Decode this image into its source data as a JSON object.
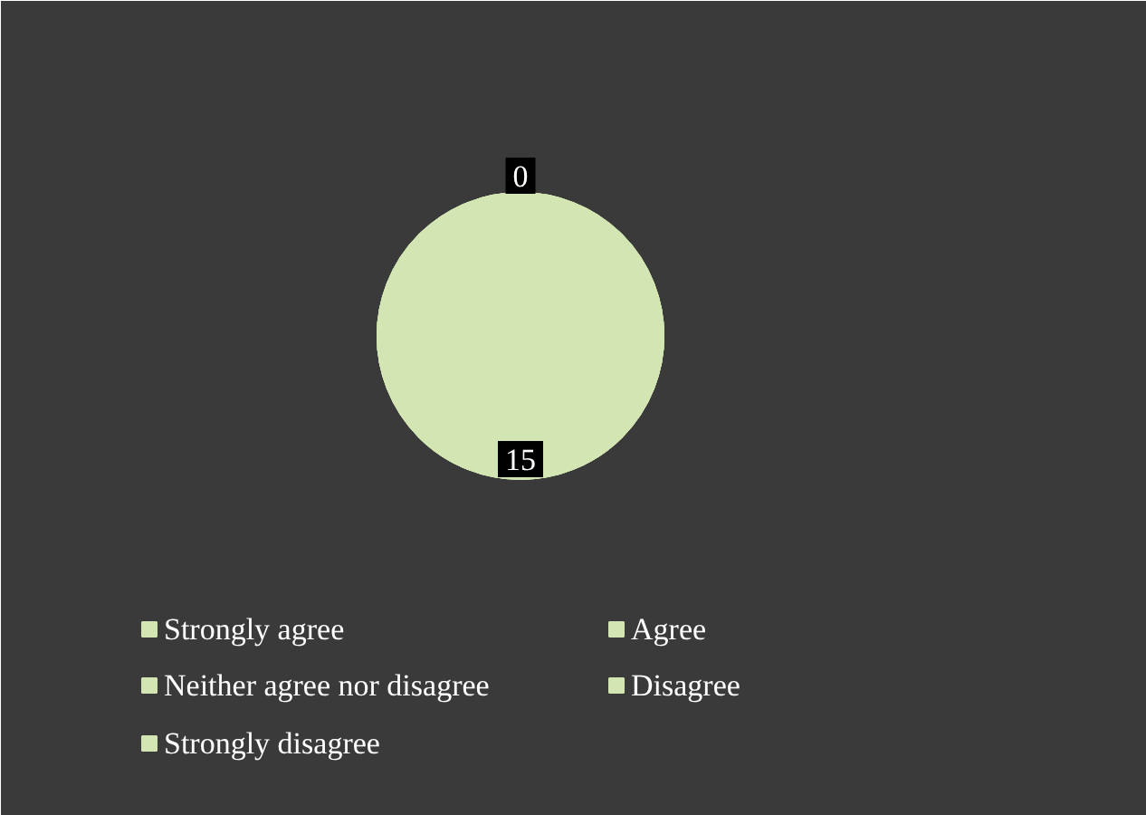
{
  "chart_data": {
    "type": "pie",
    "categories": [
      "Strongly agree",
      "Agree",
      "Neither agree nor disagree",
      "Disagree",
      "Strongly disagree"
    ],
    "values": [
      15,
      0,
      0,
      0,
      0
    ],
    "colors": [
      "#d3e5b3",
      "#d3e5b3",
      "#d3e5b3",
      "#d3e5b3",
      "#d3e5b3"
    ],
    "value_labels": [
      "15",
      null,
      null,
      null,
      "0"
    ],
    "legend": "bottom"
  }
}
